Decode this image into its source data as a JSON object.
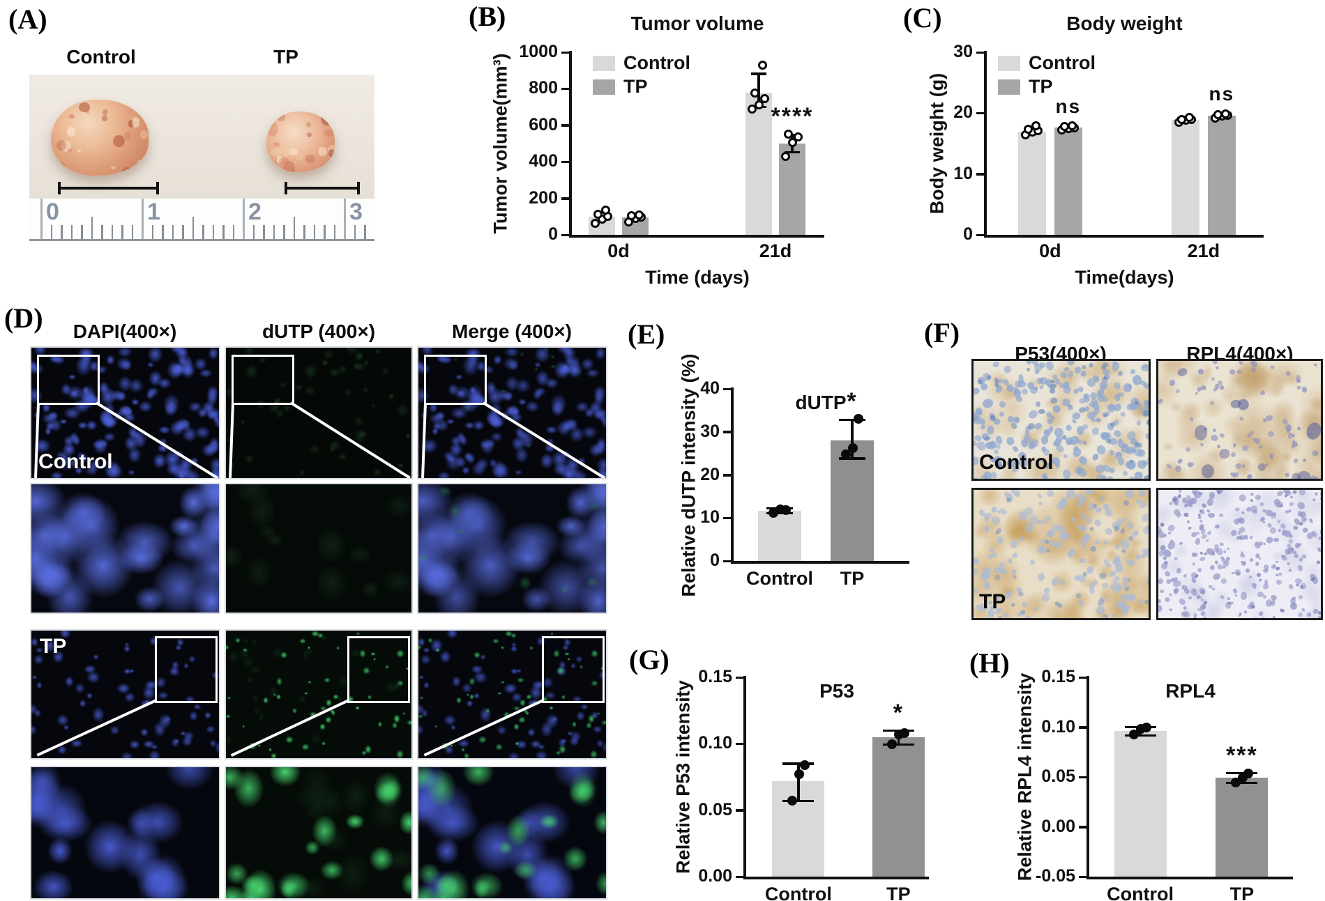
{
  "panels": {
    "a": {
      "label": "(A)",
      "groups": [
        "Control",
        "TP"
      ],
      "ruler_numbers": [
        "0",
        "1",
        "2",
        "3"
      ]
    },
    "d": {
      "label": "(D)",
      "column_headers": [
        "DAPI(400×)",
        "dUTP (400×)",
        "Merge (400×)"
      ],
      "row_labels": [
        "Control",
        "TP"
      ],
      "colors": {
        "dapi_blue": "#4c5fd8",
        "dutp_green": "#42d06c",
        "background": "#05070d"
      }
    },
    "f": {
      "label": "(F)",
      "column_headers": [
        "P53(400×)",
        "RPL4(400×)"
      ],
      "row_labels": [
        "Control",
        "TP"
      ],
      "colors": {
        "tan": "#c8a263",
        "nuclei_blue": "#8fa6cf",
        "nuclei_purple": "#8c8fbe",
        "p53_control_base": "#e9e4d8",
        "rpl4_control_base": "#eae3d2",
        "p53_tp_base": "#e8ddc6",
        "rpl4_tp_base": "#eeedf6"
      }
    }
  },
  "chart_data": [
    {
      "id": "B",
      "panel_label": "(B)",
      "type": "bar",
      "title": "Tumor volume",
      "ylabel": "Tumor volume(mm³)",
      "xlabel": "Time (days)",
      "ylim": [
        0,
        1000
      ],
      "yticks": [
        0,
        200,
        400,
        600,
        800,
        1000
      ],
      "ytick_labels": [
        "0",
        "200",
        "400",
        "600",
        "800",
        "1000"
      ],
      "categories": [
        "0d",
        "21d"
      ],
      "legend": true,
      "point_style": "open",
      "series": [
        {
          "name": "Control",
          "color": "#d9d9d9",
          "values": [
            100,
            780
          ],
          "err_low": [
            null,
            700
          ],
          "err_high": [
            null,
            882
          ],
          "points": [
            [
              62,
              85,
              100,
              112,
              135
            ],
            [
              688,
              712,
              748,
              775,
              930
            ]
          ],
          "sig": [
            "",
            ""
          ]
        },
        {
          "name": "TP",
          "color": "#a6a6a6",
          "values": [
            95,
            500
          ],
          "err_low": [
            null,
            452
          ],
          "err_high": [
            null,
            548
          ],
          "points": [
            [
              70,
              88,
              98,
              104,
              108
            ],
            [
              430,
              505,
              535,
              552
            ]
          ],
          "sig": [
            "",
            "****"
          ]
        }
      ]
    },
    {
      "id": "C",
      "panel_label": "(C)",
      "type": "bar",
      "title": "Body weight",
      "ylabel": "Body weight (g)",
      "xlabel": "Time(days)",
      "ylim": [
        0,
        30
      ],
      "yticks": [
        0,
        10,
        20,
        30
      ],
      "ytick_labels": [
        "0",
        "10",
        "20",
        "30"
      ],
      "categories": [
        "0d",
        "21d"
      ],
      "legend": true,
      "point_style": "open",
      "series": [
        {
          "name": "Control",
          "color": "#d9d9d9",
          "values": [
            17.0,
            18.9
          ],
          "err_low": [
            16.7,
            18.7
          ],
          "err_high": [
            17.4,
            19.1
          ],
          "points": [
            [
              16.4,
              16.9,
              17.1,
              17.4,
              17.9
            ],
            [
              18.5,
              18.8,
              18.9,
              19.0,
              19.3
            ]
          ],
          "sig": [
            "",
            ""
          ]
        },
        {
          "name": "TP",
          "color": "#a6a6a6",
          "values": [
            17.6,
            19.6
          ],
          "err_low": [
            17.3,
            19.4
          ],
          "err_high": [
            17.9,
            19.8
          ],
          "points": [
            [
              17.2,
              17.5,
              17.6,
              17.8,
              17.9
            ],
            [
              19.2,
              19.5,
              19.6,
              19.7,
              19.9
            ]
          ],
          "sig": [
            "ns",
            "ns"
          ]
        }
      ]
    },
    {
      "id": "E",
      "panel_label": "(E)",
      "type": "bar",
      "title": "dUTP",
      "ylabel": "Relative dUTP intensity (%)",
      "xlabel": "",
      "ylim": [
        0,
        40
      ],
      "yticks": [
        0,
        10,
        20,
        30,
        40
      ],
      "ytick_labels": [
        "0",
        "10",
        "20",
        "30",
        "40"
      ],
      "categories": [
        "Control",
        "TP"
      ],
      "legend": false,
      "point_style": "filled",
      "bars": [
        {
          "label": "Control",
          "color": "#d9d9d9",
          "value": 11.6,
          "err_low": 11.1,
          "err_high": 12.2,
          "points": [
            11.1,
            12.0,
            11.9
          ],
          "sig": ""
        },
        {
          "label": "TP",
          "color": "#8f8f8f",
          "value": 28.0,
          "err_low": 23.8,
          "err_high": 32.8,
          "points": [
            24.7,
            26.3,
            33.1
          ],
          "sig": "*"
        }
      ]
    },
    {
      "id": "G",
      "panel_label": "(G)",
      "type": "bar",
      "title": "P53",
      "ylabel": "Relative P53 intensity",
      "xlabel": "",
      "ylim": [
        0,
        0.15
      ],
      "yticks": [
        0,
        0.05,
        0.1,
        0.15
      ],
      "ytick_labels": [
        "0.00",
        "0.05",
        "0.10",
        "0.15"
      ],
      "categories": [
        "Control",
        "TP"
      ],
      "legend": false,
      "point_style": "filled",
      "bars": [
        {
          "label": "Control",
          "color": "#d9d9d9",
          "value": 0.072,
          "err_low": 0.057,
          "err_high": 0.085,
          "points": [
            0.057,
            0.077,
            0.084
          ],
          "sig": ""
        },
        {
          "label": "TP",
          "color": "#919191",
          "value": 0.105,
          "err_low": 0.0995,
          "err_high": 0.11,
          "points": [
            0.0995,
            0.107,
            0.108
          ],
          "sig": "*"
        }
      ]
    },
    {
      "id": "H",
      "panel_label": "(H)",
      "type": "bar",
      "title": "RPL4",
      "ylabel": "Relative RPL4 intensity",
      "xlabel": "",
      "ylim": [
        -0.05,
        0.15
      ],
      "yticks": [
        -0.05,
        0,
        0.05,
        0.1,
        0.15
      ],
      "ytick_labels": [
        "-0.05",
        "0.00",
        "0.05",
        "0.10",
        "0.15"
      ],
      "categories": [
        "Control",
        "TP"
      ],
      "legend": false,
      "point_style": "filled",
      "bar_base": -0.05,
      "bars": [
        {
          "label": "Control",
          "color": "#d9d9d9",
          "value": 0.096,
          "err_low": 0.0915,
          "err_high": 0.1,
          "points": [
            0.0925,
            0.0985,
            0.0995
          ],
          "sig": ""
        },
        {
          "label": "TP",
          "color": "#919191",
          "value": 0.049,
          "err_low": 0.044,
          "err_high": 0.054,
          "points": [
            0.0445,
            0.049,
            0.0535
          ],
          "sig": "***"
        }
      ]
    }
  ]
}
